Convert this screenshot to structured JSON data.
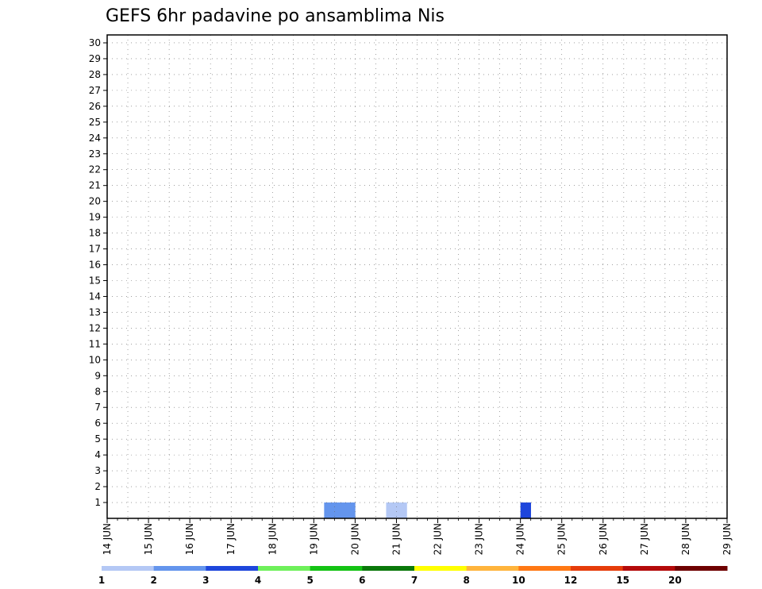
{
  "chart_data": {
    "type": "heatmap",
    "title": "GEFS 6hr padavine po ansamblima Nis",
    "xlabel": "",
    "ylabel": "",
    "x_tick_labels": [
      "14 JUN",
      "15 JUN",
      "16 JUN",
      "17 JUN",
      "18 JUN",
      "19 JUN",
      "20 JUN",
      "21 JUN",
      "22 JUN",
      "23 JUN",
      "24 JUN",
      "25 JUN",
      "26 JUN",
      "27 JUN",
      "28 JUN",
      "29 JUN"
    ],
    "y_tick_labels": [
      "1",
      "2",
      "3",
      "4",
      "5",
      "6",
      "7",
      "8",
      "9",
      "10",
      "11",
      "12",
      "13",
      "14",
      "15",
      "16",
      "17",
      "18",
      "19",
      "20",
      "21",
      "22",
      "23",
      "24",
      "25",
      "26",
      "27",
      "28",
      "29",
      "30"
    ],
    "x_range": [
      "14 JUN 00Z",
      "29 JUN 00Z"
    ],
    "y_range": [
      0,
      30
    ],
    "time_step_hours": 6,
    "grid": true,
    "legend": {
      "position": "bottom",
      "levels": [
        "1",
        "2",
        "3",
        "4",
        "5",
        "6",
        "7",
        "8",
        "10",
        "12",
        "15",
        "20"
      ],
      "colors": [
        "#b4c8f5",
        "#6495ed",
        "#1e46dc",
        "#6ef05a",
        "#14c314",
        "#0a780a",
        "#ffff00",
        "#ffb43c",
        "#ff7814",
        "#e63c0a",
        "#b40a0a",
        "#6e0000"
      ]
    },
    "values_note": "rows = ensemble members 0-30 (bottom to top), columns = 6-hourly steps from 14 JUN 00Z; value = legend category index (0 = below 1 mm)",
    "rows": [
      "00000000000000000000022200011000000000003000000000000000000000000000000000000000000000000000000000000000000000000000000000000000000000000000000000000000000000000000000000000000000000000000000000000000000000000000000000000000000",
      "000000000000000000000000000000000000000000000000000000000000000000000000000000000000000000000000000000000000000000000000000000000000000000000000000000000000000000000000000000000000000000000000000000000000000000000000000000000",
      "00000000000000000000000000000000000000000000000000000000000000000000000000000000000000000000000000000000000000000000000000000000000000000000000000000000000000000000000000000000000000000000000000000000000000000000000000000000"
    ]
  }
}
